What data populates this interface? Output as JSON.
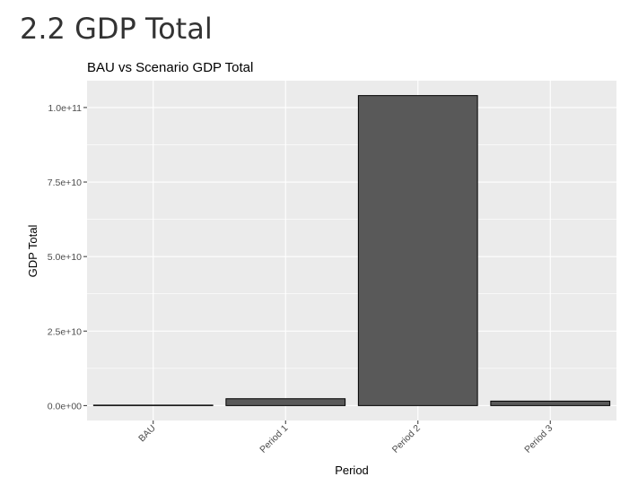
{
  "section_heading": "2.2 GDP Total",
  "chart_data": {
    "type": "bar",
    "title": "BAU vs Scenario GDP Total",
    "xlabel": "Period",
    "ylabel": "GDP Total",
    "categories": [
      "BAU",
      "Period 1",
      "Period 2",
      "Period 3"
    ],
    "values": [
      150000000,
      2300000000,
      104000000000,
      1500000000
    ],
    "ylim": [
      -5000000000,
      109000000000
    ],
    "yticks": [
      0,
      25000000000,
      50000000000,
      75000000000,
      100000000000
    ],
    "ytick_labels": [
      "0.0e+00",
      "2.5e+10",
      "5.0e+10",
      "7.5e+10",
      "1.0e+11"
    ],
    "grid": true,
    "legend": "none",
    "colors": {
      "panel_background": "#ebebeb",
      "gridline": "#ffffff",
      "bar_fill": "#595959",
      "bar_outline": "#000000",
      "axis_text": "#4d4d4d",
      "label_text": "#000000"
    }
  }
}
